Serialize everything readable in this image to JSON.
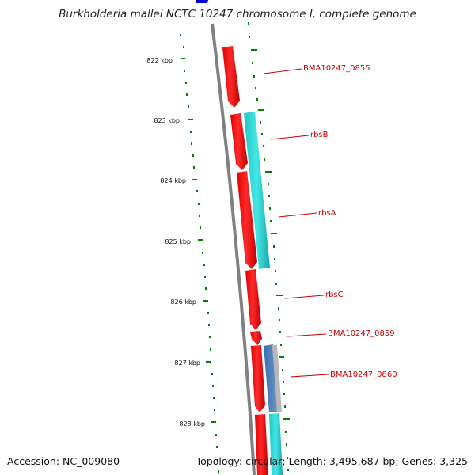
{
  "title": "Burkholderia mallei NCTC 10247 chromosome I, complete genome",
  "footer": {
    "accession": "Accession: NC_009080",
    "topology": "Topology: circular; Length: 3,495,687 bp; Genes: 3,325"
  },
  "ticks": [
    "822 kbp",
    "823 kbp",
    "824 kbp",
    "825 kbp",
    "826 kbp",
    "827 kbp",
    "828 kbp"
  ],
  "genes": [
    "BMA10247_0855",
    "rbsB",
    "rbsA",
    "rbsC",
    "BMA10247_0859",
    "BMA10247_0860"
  ],
  "colors": {
    "cds": "#ff0000",
    "gene_feature": "#22cccc",
    "blue_feature": "#4477bb",
    "backbone": "#808080",
    "gc_skew": "#008000",
    "label": "#cc0000"
  }
}
